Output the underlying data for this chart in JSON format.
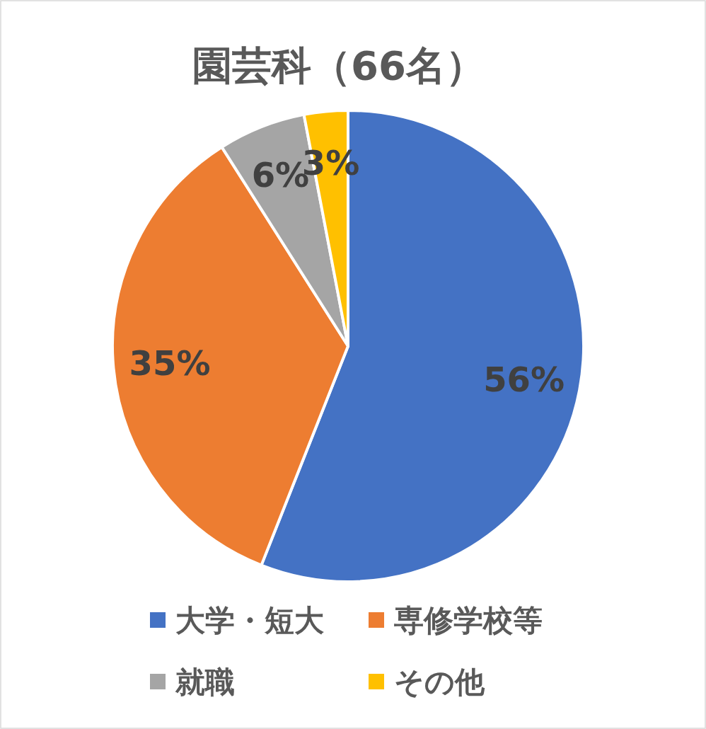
{
  "chart_data": {
    "type": "pie",
    "title": "園芸科（66名）",
    "categories": [
      "大学・短大",
      "専修学校等",
      "就職",
      "その他"
    ],
    "values": [
      56,
      35,
      6,
      3
    ],
    "colors": [
      "#4472c4",
      "#ed7d31",
      "#a5a5a5",
      "#ffc000"
    ],
    "value_labels": [
      "56%",
      "35%",
      "6%",
      "3%"
    ],
    "legend": "bottom"
  }
}
